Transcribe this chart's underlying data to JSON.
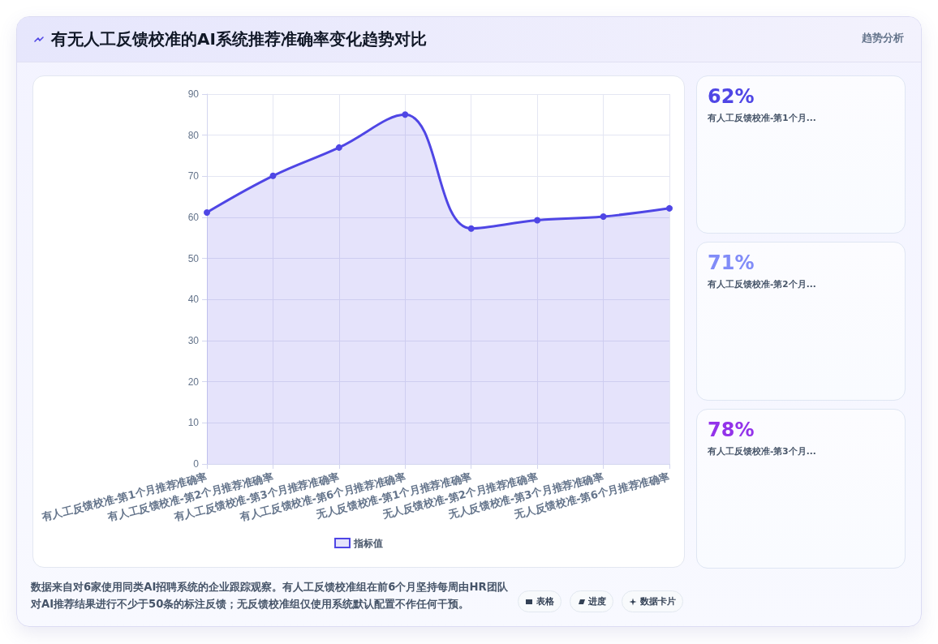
{
  "chart_data": [
    {
      "type": "area",
      "title": "有无人工反馈校准的AI系统推荐准确率变化趋势对比",
      "categories": [
        "有人工反馈校准-第1个月推荐准确率",
        "有人工反馈校准-第2个月推荐准确率",
        "有人工反馈校准-第3个月推荐准确率",
        "有人工反馈校准-第6个月推荐准确率",
        "无人反馈校准-第1个月推荐准确率",
        "无人反馈校准-第2个月推荐准确率",
        "无人反馈校准-第3个月推荐准确率",
        "无人反馈校准-第6个月推荐准确率"
      ],
      "series": [
        {
          "name": "指标值",
          "color": "#4f46e5",
          "values": [
            61.2,
            70.1,
            77,
            85,
            57.3,
            59.3,
            60.2,
            62.2
          ]
        }
      ],
      "ylim": [
        0,
        90
      ],
      "yticks": [
        0,
        10,
        20,
        30,
        40,
        50,
        60,
        70,
        80,
        90
      ],
      "grid": true,
      "legend": "bottom",
      "marker": "circle",
      "annotations": [
        "数据来自对6家使用同类AI招聘系统的企业跟踪观察。有人工反馈校准组在前6个月坚持每周由HR团队对AI推荐结果进行不少于50条的标注反馈；无反馈校准组仅使用系统默认配置不作任何干预。"
      ]
    },
    {
      "type": "other",
      "title": "趋势分析",
      "annotations": [
        "62%",
        "有人工反馈校准-第1个月...",
        "71%",
        "有人工反馈校准-第2个月...",
        "78%",
        "有人工反馈校准-第3个月..."
      ]
    },
    {
      "type": "other",
      "annotations": [
        "表格",
        "进度",
        "数据卡片"
      ]
    }
  ]
}
